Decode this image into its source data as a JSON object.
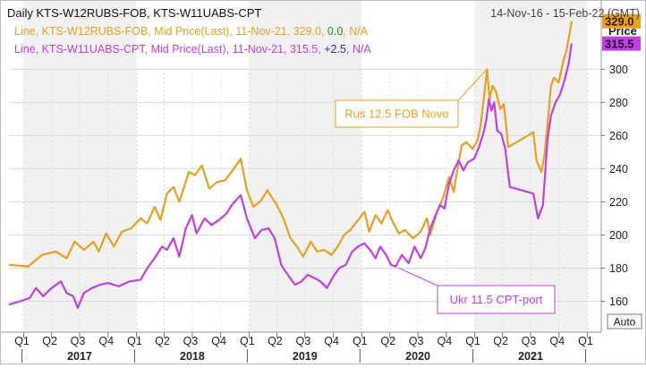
{
  "header": {
    "title": "Daily KTS-W12RUBS-FOB, KTS-W11UABS-CPT",
    "date_range": "14-Nov-16 - 15-Feb-22 (GMT)"
  },
  "legend": [
    {
      "text": "Line, KTS-W12RUBS-FOB, Mid Price(Last), 11-Nov-21, 329.0, ",
      "change": "0.0",
      "status": "N/A",
      "color": "#E8A020",
      "change_color": "#1a9a1a"
    },
    {
      "text": "Line, KTS-W11UABS-CPT, Mid Price(Last), 11-Nov-21, 315.5, ",
      "change": "+2.5",
      "status": "N/A",
      "color": "#C040E0",
      "change_color": "#1f2fb8"
    }
  ],
  "axis": {
    "y_title": "Price",
    "auto_label": "Auto",
    "last_labels": [
      "329.0",
      "315.5"
    ]
  },
  "annotations": [
    {
      "text": "Rus 12.5 FOB Novo",
      "series": 0
    },
    {
      "text": "Ukr 11.5 CPT-port",
      "series": 1
    }
  ],
  "colors": {
    "rus": "#E8A020",
    "ukr": "#C040E0",
    "band": "#F1F1F1",
    "grid": "#DADADA"
  },
  "chart_data": {
    "type": "line",
    "title": "Daily KTS-W12RUBS-FOB, KTS-W11UABS-CPT",
    "ylabel": "Price",
    "ylim": [
      150,
      334
    ],
    "yticks": [
      160,
      180,
      200,
      220,
      240,
      260,
      280,
      300
    ],
    "xlim": [
      "2016-11-14",
      "2022-02-15"
    ],
    "quarter_labels": [
      [
        "2017-01-01",
        "Q1"
      ],
      [
        "2017-04-01",
        "Q2"
      ],
      [
        "2017-07-01",
        "Q3"
      ],
      [
        "2017-10-01",
        "Q4"
      ],
      [
        "2018-01-01",
        "Q1"
      ],
      [
        "2018-04-01",
        "Q2"
      ],
      [
        "2018-07-01",
        "Q3"
      ],
      [
        "2018-10-01",
        "Q4"
      ],
      [
        "2019-01-01",
        "Q1"
      ],
      [
        "2019-04-01",
        "Q2"
      ],
      [
        "2019-07-01",
        "Q3"
      ],
      [
        "2019-10-01",
        "Q4"
      ],
      [
        "2020-01-01",
        "Q1"
      ],
      [
        "2020-04-01",
        "Q2"
      ],
      [
        "2020-07-01",
        "Q3"
      ],
      [
        "2020-10-01",
        "Q4"
      ],
      [
        "2021-01-01",
        "Q1"
      ],
      [
        "2021-04-01",
        "Q2"
      ],
      [
        "2021-07-01",
        "Q3"
      ],
      [
        "2021-10-01",
        "Q4"
      ],
      [
        "2022-01-01",
        "Q1"
      ]
    ],
    "year_labels": [
      [
        "2017-07-01",
        "2017"
      ],
      [
        "2018-07-01",
        "2018"
      ],
      [
        "2019-07-01",
        "2019"
      ],
      [
        "2020-07-01",
        "2020"
      ],
      [
        "2021-07-01",
        "2021"
      ]
    ],
    "grid": true,
    "series": [
      {
        "name": "Line, KTS-W12RUBS-FOB, Mid Price(Last)",
        "points": [
          [
            "2016-11-14",
            182
          ],
          [
            "2017-01-15",
            181
          ],
          [
            "2017-03-01",
            188
          ],
          [
            "2017-04-15",
            190
          ],
          [
            "2017-05-20",
            186
          ],
          [
            "2017-06-15",
            196
          ],
          [
            "2017-07-15",
            191
          ],
          [
            "2017-08-15",
            196
          ],
          [
            "2017-09-01",
            190
          ],
          [
            "2017-09-25",
            201
          ],
          [
            "2017-10-20",
            193
          ],
          [
            "2017-11-15",
            202
          ],
          [
            "2017-12-15",
            204
          ],
          [
            "2018-01-15",
            210
          ],
          [
            "2018-02-05",
            207
          ],
          [
            "2018-03-01",
            217
          ],
          [
            "2018-03-20",
            209
          ],
          [
            "2018-04-10",
            225
          ],
          [
            "2018-05-01",
            229
          ],
          [
            "2018-05-20",
            220
          ],
          [
            "2018-06-20",
            238
          ],
          [
            "2018-07-10",
            236
          ],
          [
            "2018-08-01",
            242
          ],
          [
            "2018-08-25",
            228
          ],
          [
            "2018-09-20",
            232
          ],
          [
            "2018-10-15",
            233
          ],
          [
            "2018-11-05",
            238
          ],
          [
            "2018-12-05",
            246
          ],
          [
            "2018-12-25",
            227
          ],
          [
            "2019-01-15",
            217
          ],
          [
            "2019-02-10",
            221
          ],
          [
            "2019-03-01",
            227
          ],
          [
            "2019-04-01",
            218
          ],
          [
            "2019-04-20",
            211
          ],
          [
            "2019-05-15",
            198
          ],
          [
            "2019-06-05",
            193
          ],
          [
            "2019-06-25",
            187
          ],
          [
            "2019-07-20",
            196
          ],
          [
            "2019-08-10",
            190
          ],
          [
            "2019-09-01",
            191
          ],
          [
            "2019-09-25",
            188
          ],
          [
            "2019-10-15",
            193
          ],
          [
            "2019-11-05",
            200
          ],
          [
            "2019-11-25",
            203
          ],
          [
            "2019-12-20",
            209
          ],
          [
            "2020-01-10",
            214
          ],
          [
            "2020-01-25",
            202
          ],
          [
            "2020-02-15",
            212
          ],
          [
            "2020-03-05",
            207
          ],
          [
            "2020-03-25",
            215
          ],
          [
            "2020-04-10",
            208
          ],
          [
            "2020-04-30",
            201
          ],
          [
            "2020-05-20",
            203
          ],
          [
            "2020-06-15",
            198
          ],
          [
            "2020-07-10",
            202
          ],
          [
            "2020-07-30",
            210
          ],
          [
            "2020-08-10",
            200
          ],
          [
            "2020-09-01",
            214
          ],
          [
            "2020-09-20",
            222
          ],
          [
            "2020-10-10",
            235
          ],
          [
            "2020-10-25",
            226
          ],
          [
            "2020-11-10",
            244
          ],
          [
            "2020-11-20",
            254
          ],
          [
            "2020-12-05",
            256
          ],
          [
            "2020-12-25",
            252
          ],
          [
            "2021-01-10",
            257
          ],
          [
            "2021-01-20",
            266
          ],
          [
            "2021-02-01",
            285
          ],
          [
            "2021-02-10",
            300
          ],
          [
            "2021-02-18",
            282
          ],
          [
            "2021-02-28",
            290
          ],
          [
            "2021-03-10",
            287
          ],
          [
            "2021-03-25",
            276
          ],
          [
            "2021-04-05",
            279
          ],
          [
            "2021-04-20",
            253
          ],
          [
            "2021-07-10",
            262
          ],
          [
            "2021-07-20",
            245
          ],
          [
            "2021-08-05",
            238
          ],
          [
            "2021-08-15",
            248
          ],
          [
            "2021-08-25",
            267
          ],
          [
            "2021-09-05",
            290
          ],
          [
            "2021-09-15",
            295
          ],
          [
            "2021-09-30",
            292
          ],
          [
            "2021-10-15",
            305
          ],
          [
            "2021-10-25",
            311
          ],
          [
            "2021-11-05",
            322
          ],
          [
            "2021-11-11",
            329
          ]
        ]
      },
      {
        "name": "Line, KTS-W11UABS-CPT, Mid Price(Last)",
        "points": [
          [
            "2016-11-14",
            158
          ],
          [
            "2016-12-20",
            160
          ],
          [
            "2017-01-20",
            162
          ],
          [
            "2017-02-10",
            168
          ],
          [
            "2017-03-05",
            163
          ],
          [
            "2017-04-01",
            168
          ],
          [
            "2017-05-01",
            172
          ],
          [
            "2017-05-20",
            165
          ],
          [
            "2017-06-10",
            163
          ],
          [
            "2017-06-25",
            156
          ],
          [
            "2017-07-15",
            165
          ],
          [
            "2017-08-10",
            168
          ],
          [
            "2017-09-05",
            170
          ],
          [
            "2017-10-01",
            171
          ],
          [
            "2017-11-05",
            169
          ],
          [
            "2017-12-10",
            172
          ],
          [
            "2018-01-15",
            173
          ],
          [
            "2018-02-05",
            180
          ],
          [
            "2018-03-01",
            186
          ],
          [
            "2018-03-25",
            193
          ],
          [
            "2018-04-10",
            191
          ],
          [
            "2018-05-01",
            198
          ],
          [
            "2018-05-20",
            187
          ],
          [
            "2018-06-10",
            204
          ],
          [
            "2018-06-30",
            212
          ],
          [
            "2018-07-15",
            201
          ],
          [
            "2018-08-10",
            210
          ],
          [
            "2018-09-01",
            206
          ],
          [
            "2018-09-25",
            209
          ],
          [
            "2018-10-20",
            213
          ],
          [
            "2018-11-10",
            219
          ],
          [
            "2018-12-05",
            224
          ],
          [
            "2018-12-25",
            210
          ],
          [
            "2019-01-20",
            198
          ],
          [
            "2019-02-10",
            203
          ],
          [
            "2019-03-05",
            204
          ],
          [
            "2019-03-25",
            198
          ],
          [
            "2019-04-15",
            182
          ],
          [
            "2019-05-10",
            175
          ],
          [
            "2019-05-30",
            170
          ],
          [
            "2019-06-20",
            172
          ],
          [
            "2019-07-10",
            176
          ],
          [
            "2019-08-01",
            174
          ],
          [
            "2019-08-20",
            172
          ],
          [
            "2019-09-10",
            168
          ],
          [
            "2019-10-01",
            175
          ],
          [
            "2019-10-20",
            180
          ],
          [
            "2019-11-10",
            182
          ],
          [
            "2019-12-01",
            190
          ],
          [
            "2019-12-20",
            193
          ],
          [
            "2020-01-10",
            195
          ],
          [
            "2020-02-01",
            190
          ],
          [
            "2020-02-15",
            186
          ],
          [
            "2020-03-01",
            193
          ],
          [
            "2020-03-20",
            188
          ],
          [
            "2020-04-05",
            182
          ],
          [
            "2020-04-20",
            181
          ],
          [
            "2020-05-10",
            188
          ],
          [
            "2020-06-01",
            183
          ],
          [
            "2020-06-20",
            193
          ],
          [
            "2020-07-10",
            186
          ],
          [
            "2020-07-25",
            192
          ],
          [
            "2020-08-10",
            204
          ],
          [
            "2020-08-25",
            211
          ],
          [
            "2020-09-10",
            218
          ],
          [
            "2020-09-25",
            216
          ],
          [
            "2020-10-10",
            231
          ],
          [
            "2020-10-25",
            239
          ],
          [
            "2020-11-10",
            245
          ],
          [
            "2020-11-25",
            239
          ],
          [
            "2020-12-10",
            244
          ],
          [
            "2020-12-30",
            246
          ],
          [
            "2021-01-15",
            253
          ],
          [
            "2021-01-30",
            262
          ],
          [
            "2021-02-08",
            270
          ],
          [
            "2021-02-16",
            282
          ],
          [
            "2021-02-24",
            275
          ],
          [
            "2021-03-05",
            280
          ],
          [
            "2021-03-15",
            263
          ],
          [
            "2021-03-28",
            261
          ],
          [
            "2021-04-10",
            252
          ],
          [
            "2021-04-20",
            236
          ],
          [
            "2021-04-25",
            229
          ],
          [
            "2021-07-10",
            225
          ],
          [
            "2021-07-25",
            210
          ],
          [
            "2021-08-10",
            218
          ],
          [
            "2021-08-25",
            258
          ],
          [
            "2021-09-05",
            272
          ],
          [
            "2021-09-20",
            280
          ],
          [
            "2021-10-05",
            285
          ],
          [
            "2021-10-20",
            294
          ],
          [
            "2021-11-01",
            303
          ],
          [
            "2021-11-11",
            315.5
          ]
        ]
      }
    ]
  }
}
